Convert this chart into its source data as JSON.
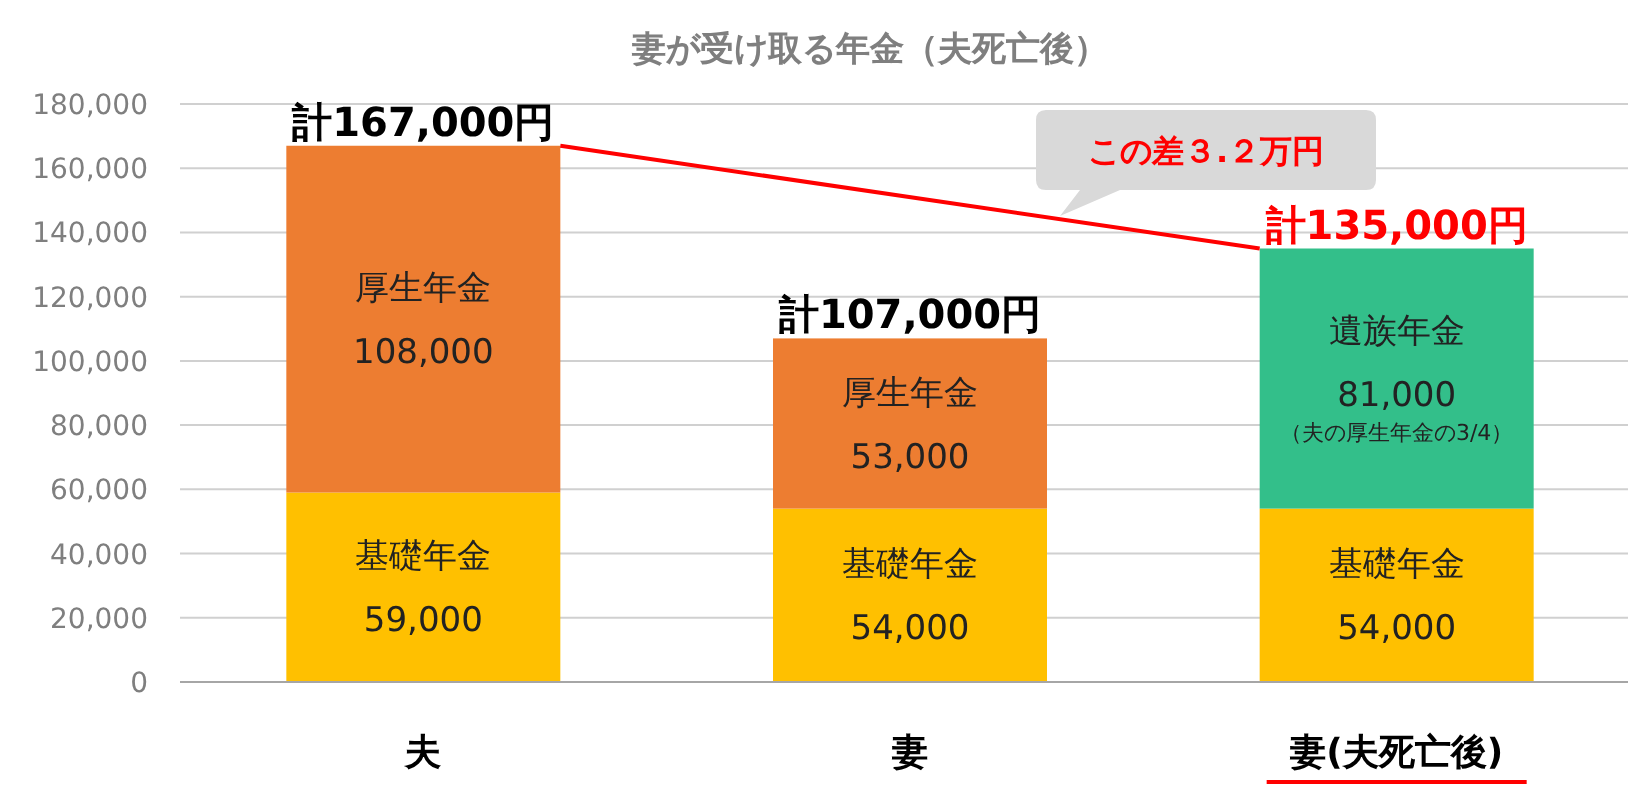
{
  "chart_data": {
    "type": "bar",
    "stacked": true,
    "title": "妻が受け取る年金（夫死亡後）",
    "categories": [
      "夫",
      "妻",
      "妻(夫死亡後)"
    ],
    "series": [
      {
        "color": "#ffc000",
        "values": [
          59000,
          54000,
          54000
        ],
        "value_labels": [
          "基礎年金\n59,000",
          "基礎年金\n54,000",
          "基礎年金\n54,000"
        ]
      },
      {
        "colors": [
          "#ed7d31",
          "#ed7d31",
          "#33bf8a"
        ],
        "values": [
          108000,
          53000,
          81000
        ],
        "value_labels": [
          "厚生年金\n108,000",
          "厚生年金\n53,000",
          "遺族年金\n81,000\n（夫の厚生年金の3/4）"
        ]
      }
    ],
    "totals": [
      "計167,000円",
      "計107,000円",
      "計135,000円"
    ],
    "annotations": [
      "この差３.２万円"
    ],
    "ylim": [
      0,
      180000
    ],
    "yticks": [
      0,
      {
        "value": 20000,
        "label": "20,000"
      },
      {
        "value": 40000,
        "label": "40,000"
      },
      {
        "value": 60000,
        "label": "60,000"
      },
      {
        "value": 80000,
        "label": "80,000"
      },
      {
        "value": 100000,
        "label": "100,000"
      },
      {
        "value": 120000,
        "label": "120,000"
      },
      {
        "value": 140000,
        "label": "140,000"
      },
      {
        "value": 160000,
        "label": "160,000"
      },
      {
        "value": 180000,
        "label": "180,000"
      }
    ],
    "grid": "y"
  }
}
